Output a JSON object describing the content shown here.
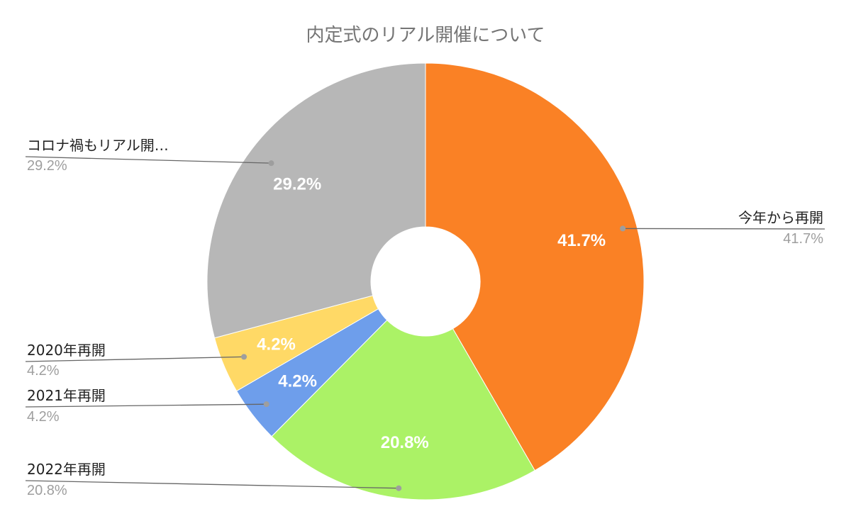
{
  "chart_data": {
    "type": "pie",
    "title": "内定式のリアル開催について",
    "donut": true,
    "slices": [
      {
        "label": "今年から再開",
        "value": 41.7,
        "display": "41.7%",
        "color": "#fa8125"
      },
      {
        "label": "2022年再開",
        "value": 20.8,
        "display": "20.8%",
        "color": "#abf266"
      },
      {
        "label": "2021年再開",
        "value": 4.2,
        "display": "4.2%",
        "color": "#6e9eeb"
      },
      {
        "label": "2020年再開",
        "value": 4.2,
        "display": "4.2%",
        "color": "#ffd966"
      },
      {
        "label": "コロナ禍もリアル開…",
        "value": 29.2,
        "display": "29.2%",
        "color": "#b7b7b7"
      }
    ],
    "legend": "callout-labels"
  }
}
